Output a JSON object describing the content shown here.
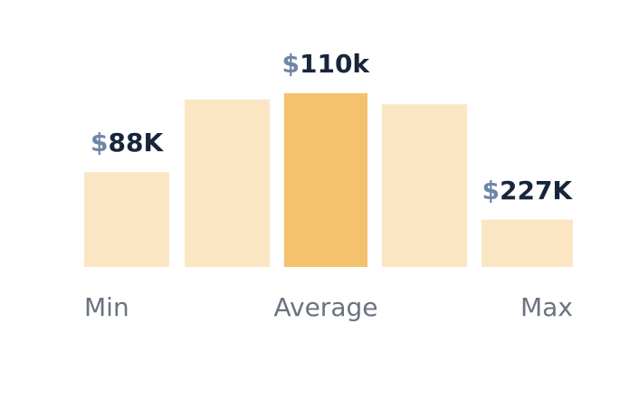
{
  "chart_data": {
    "type": "bar",
    "title": "",
    "xlabel": "",
    "ylabel": "",
    "ylim": [
      0,
      110
    ],
    "values": [
      60,
      106,
      110,
      103,
      30
    ],
    "bar_colors": [
      "#fbe6c4",
      "#fbe6c4",
      "#f4c16d",
      "#fbe6c4",
      "#fbe6c4"
    ],
    "annotations": [
      {
        "bar_index": 0,
        "currency": "$",
        "amount": "88K"
      },
      {
        "bar_index": 2,
        "currency": "$",
        "amount": "110k"
      },
      {
        "bar_index": 4,
        "currency": "$",
        "amount": "227K"
      }
    ],
    "axis_labels": [
      {
        "text": "Min",
        "align": "left"
      },
      {
        "text": "Average",
        "align": "center"
      },
      {
        "text": "Max",
        "align": "right"
      }
    ]
  }
}
